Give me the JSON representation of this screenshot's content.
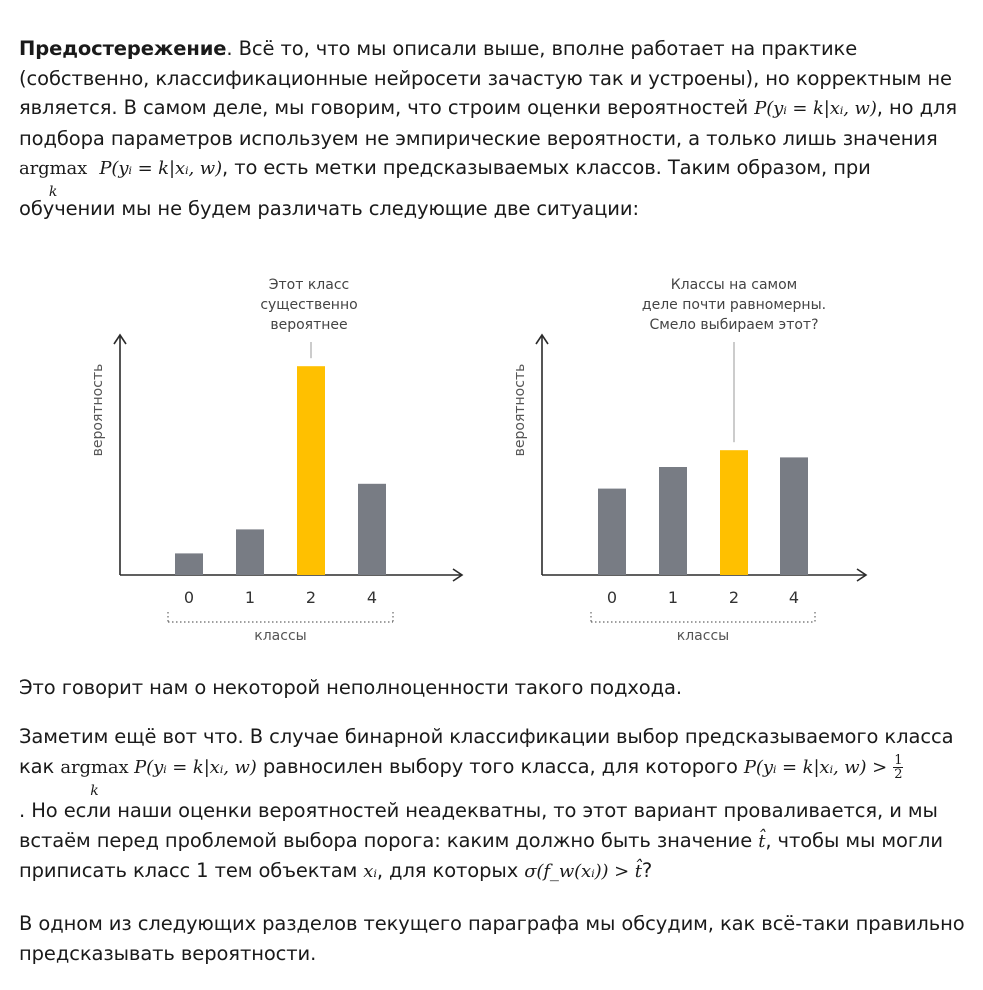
{
  "intro": {
    "bold": "Предостережение",
    "t1": ". Всё то, что мы описали выше, вполне работает на практике (собственно, классификационные нейросети зачастую так и устроены), но корректным не является. В самом деле, мы говорим, что строим оценки вероятностей ",
    "m1": "P(yᵢ = k|xᵢ, w)",
    "t2": ", но для подбора параметров используем не эмпирические вероятности, а только лишь значения",
    "argmax": "argmax",
    "argmax_sub": "k",
    "m2": "P(yᵢ = k|xᵢ, w)",
    "t3": ", то есть метки предсказываемых классов. Таким образом, при",
    "t4": "обучении мы не будем различать следующие две ситуации:"
  },
  "chart_data": [
    {
      "type": "bar",
      "categories": [
        "0",
        "1",
        "2",
        "4"
      ],
      "values": [
        0.09,
        0.19,
        0.87,
        0.38
      ],
      "highlight_index": 2,
      "ylabel": "вероятность",
      "xlabel": "классы",
      "annotation": [
        "Этот класс",
        "существенно",
        "вероятнее"
      ],
      "colors": {
        "bar": "#787c84",
        "highlight": "#ffc000"
      }
    },
    {
      "type": "bar",
      "categories": [
        "0",
        "1",
        "2",
        "4"
      ],
      "values": [
        0.36,
        0.45,
        0.52,
        0.49
      ],
      "highlight_index": 2,
      "ylabel": "вероятность",
      "xlabel": "классы",
      "annotation": [
        "Классы на самом",
        "деле почти равномерны.",
        "Смело выбираем этот?"
      ],
      "colors": {
        "bar": "#787c84",
        "highlight": "#ffc000"
      }
    }
  ],
  "p2": {
    "text": "Это говорит нам о некоторой неполноценности такого подхода."
  },
  "p3": {
    "t1": "Заметим ещё вот что. В случае бинарной классификации выбор предсказываемого класса",
    "t2": "как ",
    "argmax": "argmax",
    "argmax_sub": "k",
    "m1": " P(yᵢ = k|xᵢ, w)",
    "t3": " равносилен выбору того класса, для которого ",
    "m2": "P(yᵢ = k|xᵢ, w) >",
    "frac_num": "1",
    "frac_den": "2",
    "t4": ". Но если наши оценки вероятностей неадекватны, то этот вариант проваливается, и мы",
    "t5": "встаём перед проблемой выбора порога: каким должно быть значение ",
    "m3": "t̂",
    "t6": ", чтобы мы могли",
    "t7": "приписать класс 1 тем объектам ",
    "m4": "xᵢ",
    "t8": ", для которых ",
    "m5": "σ(fᵥᵥ(xᵢ)) > t̂",
    "t9": "?"
  },
  "p4": {
    "text": "В одном из следующих разделов текущего параграфа мы обсудим, как всё-таки правильно предсказывать вероятности."
  }
}
